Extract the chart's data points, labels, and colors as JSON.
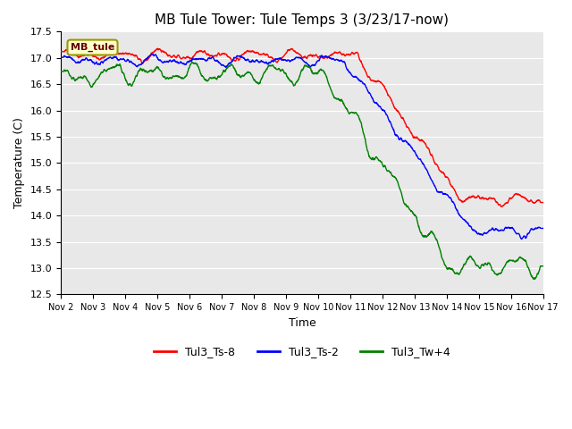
{
  "title": "MB Tule Tower: Tule Temps 3 (3/23/17-now)",
  "xlabel": "Time",
  "ylabel": "Temperature (C)",
  "ylim": [
    12.5,
    17.5
  ],
  "xlim": [
    0,
    15
  ],
  "x_tick_labels": [
    "Nov 2",
    "Nov 3",
    "Nov 4",
    "Nov 5",
    "Nov 6",
    "Nov 7",
    "Nov 8",
    "Nov 9",
    "Nov 10",
    "Nov 11",
    "Nov 12",
    "Nov 13",
    "Nov 14",
    "Nov 15",
    "Nov 16",
    "Nov 17"
  ],
  "yticks": [
    12.5,
    13.0,
    13.5,
    14.0,
    14.5,
    15.0,
    15.5,
    16.0,
    16.5,
    17.0,
    17.5
  ],
  "legend_labels": [
    "Tul3_Ts-8",
    "Tul3_Ts-2",
    "Tul3_Tw+4"
  ],
  "legend_colors": [
    "red",
    "blue",
    "green"
  ],
  "inset_label": "MB_tule",
  "inset_bg": "#ffffcc",
  "inset_border": "#999900",
  "bg_color": "#e8e8e8",
  "grid_color": "white",
  "line_width": 1.0,
  "title_fontsize": 11,
  "axis_fontsize": 9,
  "tick_fontsize": 8
}
